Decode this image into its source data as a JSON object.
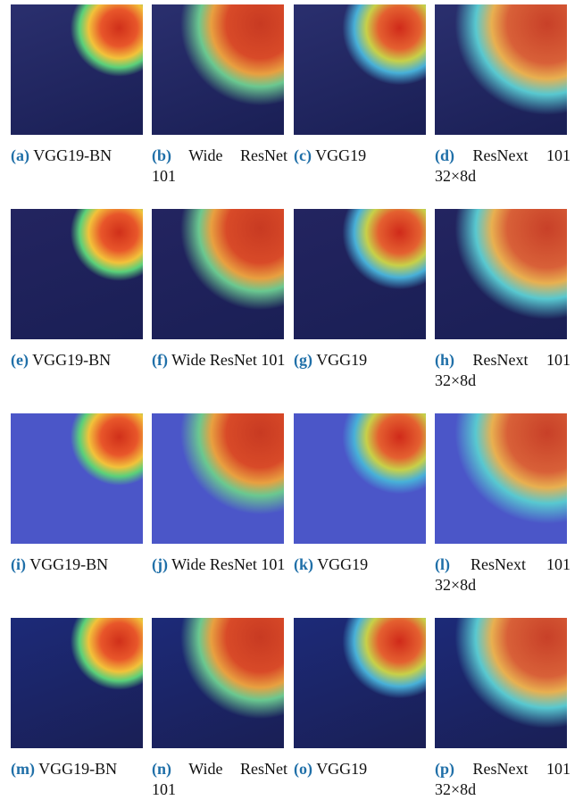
{
  "panels": [
    {
      "label": "(a)",
      "caption": "VGG19-BN"
    },
    {
      "label": "(b)",
      "caption": "Wide ResNet 101"
    },
    {
      "label": "(c)",
      "caption": "VGG19"
    },
    {
      "label": "(d)",
      "caption": "ResNext 101 32×8d"
    },
    {
      "label": "(e)",
      "caption": "VGG19-BN"
    },
    {
      "label": "(f)",
      "caption": "Wide ResNet 101"
    },
    {
      "label": "(g)",
      "caption": "VGG19"
    },
    {
      "label": "(h)",
      "caption": "ResNext 101 32×8d"
    },
    {
      "label": "(i)",
      "caption": "VGG19-BN"
    },
    {
      "label": "(j)",
      "caption": "Wide ResNet 101"
    },
    {
      "label": "(k)",
      "caption": "VGG19"
    },
    {
      "label": "(l)",
      "caption": "ResNext 101 32×8d"
    },
    {
      "label": "(m)",
      "caption": "VGG19-BN"
    },
    {
      "label": "(n)",
      "caption": "Wide ResNet 101"
    },
    {
      "label": "(o)",
      "caption": "VGG19"
    },
    {
      "label": "(p)",
      "caption": "ResNext 101 32×8d"
    }
  ]
}
